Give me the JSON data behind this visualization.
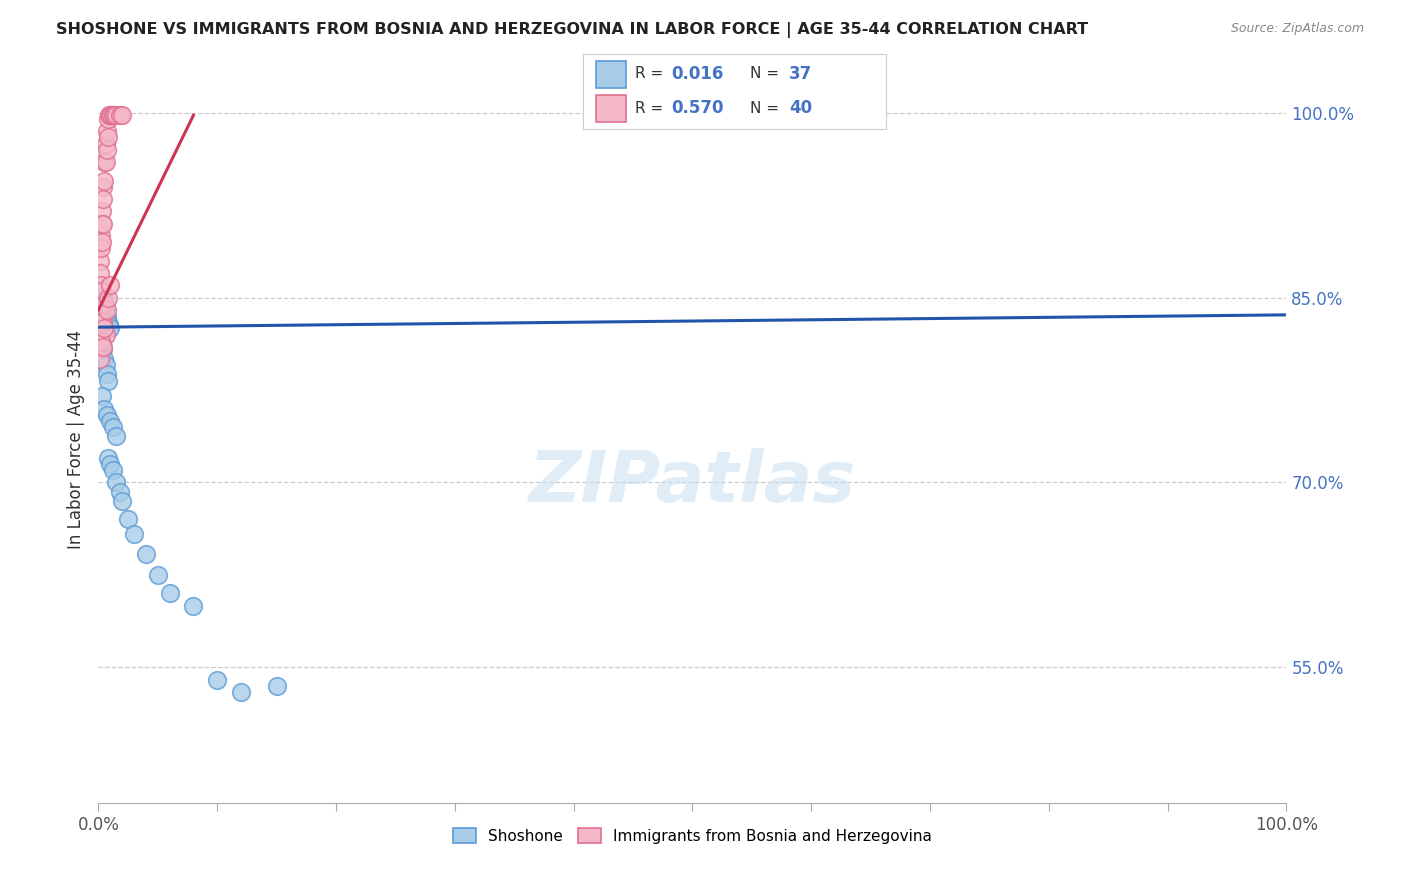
{
  "title": "SHOSHONE VS IMMIGRANTS FROM BOSNIA AND HERZEGOVINA IN LABOR FORCE | AGE 35-44 CORRELATION CHART",
  "source": "Source: ZipAtlas.com",
  "ylabel": "In Labor Force | Age 35-44",
  "ytick_vals": [
    1.0,
    0.85,
    0.7,
    0.55
  ],
  "ytick_labels": [
    "100.0%",
    "85.0%",
    "70.0%",
    "55.0%"
  ],
  "xlim": [
    0.0,
    1.0
  ],
  "ylim": [
    0.44,
    1.03
  ],
  "watermark_text": "ZIPatlas",
  "legend_blue_r": "0.016",
  "legend_blue_n": "37",
  "legend_pink_r": "0.570",
  "legend_pink_n": "40",
  "blue_face": "#a8cce8",
  "blue_edge": "#5b9bd5",
  "pink_face": "#f4b8c8",
  "pink_edge": "#e07090",
  "trend_blue": "#2255aa",
  "trend_pink": "#cc3355",
  "title_color": "#222222",
  "source_color": "#888888",
  "ytick_color": "#4472c4",
  "grid_color": "#cccccc",
  "blue_scatter_x": [
    0.002,
    0.003,
    0.004,
    0.005,
    0.006,
    0.007,
    0.008,
    0.009,
    0.01,
    0.002,
    0.003,
    0.004,
    0.005,
    0.006,
    0.007,
    0.008,
    0.003,
    0.005,
    0.007,
    0.01,
    0.012,
    0.015,
    0.008,
    0.01,
    0.012,
    0.015,
    0.018,
    0.02,
    0.025,
    0.03,
    0.04,
    0.05,
    0.06,
    0.08,
    0.1,
    0.12,
    0.15
  ],
  "blue_scatter_y": [
    0.845,
    0.838,
    0.85,
    0.848,
    0.842,
    0.835,
    0.83,
    0.828,
    0.825,
    0.815,
    0.812,
    0.808,
    0.8,
    0.795,
    0.788,
    0.782,
    0.77,
    0.76,
    0.755,
    0.75,
    0.745,
    0.738,
    0.72,
    0.715,
    0.71,
    0.7,
    0.692,
    0.685,
    0.67,
    0.658,
    0.642,
    0.625,
    0.61,
    0.6,
    0.54,
    0.53,
    0.535
  ],
  "pink_scatter_x": [
    0.001,
    0.001,
    0.002,
    0.002,
    0.002,
    0.003,
    0.003,
    0.003,
    0.004,
    0.004,
    0.004,
    0.005,
    0.005,
    0.006,
    0.006,
    0.007,
    0.007,
    0.008,
    0.008,
    0.009,
    0.01,
    0.011,
    0.012,
    0.013,
    0.015,
    0.018,
    0.02,
    0.002,
    0.003,
    0.004,
    0.005,
    0.006,
    0.001,
    0.002,
    0.003,
    0.004,
    0.005,
    0.007,
    0.008,
    0.01
  ],
  "pink_scatter_y": [
    0.88,
    0.87,
    0.9,
    0.89,
    0.86,
    0.92,
    0.91,
    0.895,
    0.94,
    0.93,
    0.91,
    0.96,
    0.945,
    0.975,
    0.96,
    0.985,
    0.97,
    0.995,
    0.98,
    0.998,
    0.998,
    0.998,
    0.998,
    0.998,
    0.998,
    0.998,
    0.998,
    0.84,
    0.855,
    0.83,
    0.845,
    0.82,
    0.8,
    0.815,
    0.83,
    0.81,
    0.825,
    0.84,
    0.85,
    0.86
  ],
  "blue_trend_x": [
    0.0,
    1.0
  ],
  "blue_trend_y": [
    0.826,
    0.836
  ],
  "pink_trend_x": [
    0.0,
    0.08
  ],
  "pink_trend_y": [
    0.84,
    0.998
  ]
}
